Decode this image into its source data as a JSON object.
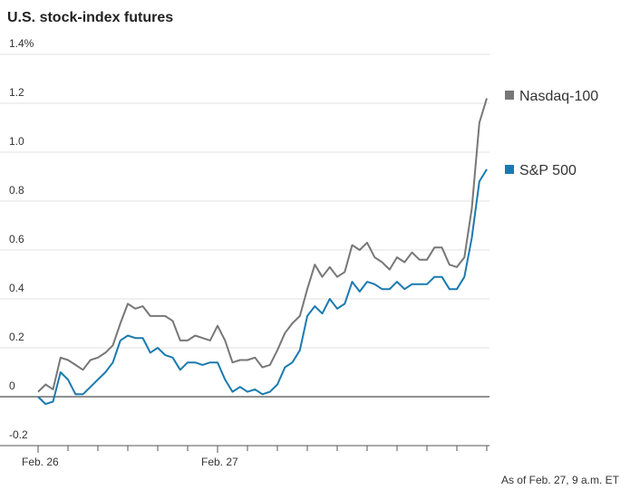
{
  "chart_data": {
    "type": "line",
    "title": "U.S. stock-index futures",
    "note": "As of Feb. 27, 9 a.m. ET",
    "x": [
      0,
      1,
      2,
      3,
      4,
      5,
      6,
      7,
      8,
      9,
      10,
      11,
      12,
      13,
      14,
      15,
      16,
      17,
      18,
      19,
      20,
      21,
      22,
      23,
      24,
      25,
      26,
      27,
      28,
      29,
      30,
      31,
      32,
      33,
      34,
      35,
      36,
      37,
      38,
      39,
      40,
      41,
      42,
      43,
      44,
      45,
      46,
      47,
      48,
      49,
      50,
      51,
      52,
      53,
      54,
      55,
      56,
      57,
      58,
      59,
      60
    ],
    "series": [
      {
        "name": "Nasdaq-100",
        "color": "#777777",
        "values": [
          0.02,
          0.05,
          0.03,
          0.16,
          0.15,
          0.13,
          0.11,
          0.15,
          0.16,
          0.18,
          0.21,
          0.3,
          0.38,
          0.36,
          0.37,
          0.33,
          0.33,
          0.33,
          0.31,
          0.23,
          0.23,
          0.25,
          0.24,
          0.23,
          0.29,
          0.23,
          0.14,
          0.15,
          0.15,
          0.16,
          0.12,
          0.13,
          0.19,
          0.26,
          0.3,
          0.33,
          0.44,
          0.54,
          0.49,
          0.53,
          0.49,
          0.51,
          0.62,
          0.6,
          0.63,
          0.57,
          0.55,
          0.52,
          0.57,
          0.55,
          0.59,
          0.56,
          0.56,
          0.61,
          0.61,
          0.54,
          0.53,
          0.57,
          0.77,
          1.12,
          1.22
        ]
      },
      {
        "name": "S&P 500",
        "color": "#1a7aaf",
        "values": [
          0.0,
          -0.03,
          -0.02,
          0.1,
          0.07,
          0.01,
          0.01,
          0.04,
          0.07,
          0.1,
          0.14,
          0.23,
          0.25,
          0.24,
          0.24,
          0.18,
          0.2,
          0.17,
          0.16,
          0.11,
          0.14,
          0.14,
          0.13,
          0.14,
          0.14,
          0.07,
          0.02,
          0.04,
          0.02,
          0.03,
          0.01,
          0.02,
          0.05,
          0.12,
          0.14,
          0.19,
          0.33,
          0.37,
          0.34,
          0.4,
          0.36,
          0.38,
          0.47,
          0.43,
          0.47,
          0.46,
          0.44,
          0.44,
          0.47,
          0.44,
          0.46,
          0.46,
          0.46,
          0.49,
          0.49,
          0.44,
          0.44,
          0.49,
          0.65,
          0.88,
          0.93
        ]
      }
    ],
    "xlim": [
      0,
      60
    ],
    "xticks": [
      {
        "value": 0,
        "label": "Feb. 26"
      },
      {
        "value": 24,
        "label": "Feb. 27"
      }
    ],
    "xminorticks": [
      0,
      4,
      8,
      12,
      16,
      20,
      24,
      28,
      32,
      36,
      40,
      44,
      48,
      52,
      56,
      60
    ],
    "ylim": [
      -0.2,
      1.4
    ],
    "yticks": [
      -0.2,
      0,
      0.2,
      0.4,
      0.6,
      {
        "value": 0.8,
        "label": "0.8"
      },
      {
        "value": 1,
        "label": "1.0"
      },
      1.2,
      {
        "value": 1.4,
        "label": "1.4%"
      }
    ],
    "grid": true
  }
}
